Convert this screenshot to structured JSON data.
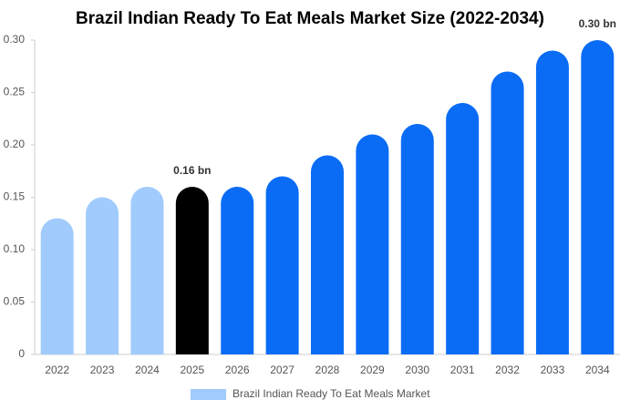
{
  "chart_data": {
    "type": "bar",
    "title": "Brazil Indian Ready To Eat Meals Market Size (2022-2034)",
    "categories": [
      "2022",
      "2023",
      "2024",
      "2025",
      "2026",
      "2027",
      "2028",
      "2029",
      "2030",
      "2031",
      "2032",
      "2033",
      "2034"
    ],
    "series": [
      {
        "name": "Brazil Indian Ready To Eat Meals Market",
        "color": "#a0cbfc",
        "values": [
          0.13,
          0.15,
          0.16,
          0.16,
          0.16,
          0.17,
          0.19,
          0.21,
          0.22,
          0.24,
          0.27,
          0.29,
          0.3
        ],
        "value_labels": [
          null,
          null,
          null,
          "0.16 bn",
          null,
          null,
          null,
          null,
          null,
          null,
          null,
          null,
          "0.30 bn"
        ],
        "colors": [
          "#a0cbfc",
          "#a0cbfc",
          "#a0cbfc",
          "#000000",
          "#0a6cf5",
          "#0a6cf5",
          "#0a6cf5",
          "#0a6cf5",
          "#0a6cf5",
          "#0a6cf5",
          "#0a6cf5",
          "#0a6cf5",
          "#0a6cf5"
        ]
      }
    ],
    "ylim": [
      0,
      0.3
    ],
    "yticks": [
      0,
      0.05,
      {
        "value": 0.1,
        "label": "0.10"
      },
      0.15,
      {
        "value": 0.2,
        "label": "0.20"
      },
      0.25,
      {
        "value": 0.3,
        "label": "0.30"
      }
    ],
    "grid": false
  }
}
